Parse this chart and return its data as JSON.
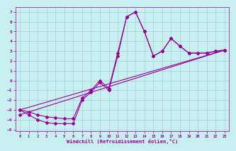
{
  "bg_color": "#c8f0f0",
  "line_color": "#990099",
  "marker": "D",
  "markersize": 2.0,
  "linewidth": 0.8,
  "xlim": [
    -0.5,
    23.5
  ],
  "ylim": [
    -5.2,
    7.5
  ],
  "xticks": [
    0,
    1,
    2,
    3,
    4,
    5,
    6,
    7,
    8,
    9,
    10,
    11,
    12,
    13,
    14,
    15,
    16,
    17,
    18,
    19,
    20,
    21,
    22,
    23
  ],
  "yticks": [
    -5,
    -4,
    -3,
    -2,
    -1,
    0,
    1,
    2,
    3,
    4,
    5,
    6,
    7
  ],
  "xlabel": "Windchill (Refroidissement éolien,°C)",
  "grid_color": "#99cccc",
  "grid_linewidth": 0.4,
  "series1_x": [
    0,
    1,
    2,
    3,
    4,
    5,
    6,
    7,
    8,
    9,
    10,
    11,
    12,
    13,
    14,
    15,
    16,
    17,
    18,
    19,
    20,
    21,
    22,
    23
  ],
  "series1_y": [
    -3.0,
    -3.5,
    -4.0,
    -4.3,
    -4.4,
    -4.4,
    -4.4,
    -2.0,
    -1.2,
    -0.2,
    -1.0,
    2.5,
    6.5,
    7.0,
    5.0,
    2.5,
    3.0,
    4.3,
    3.5,
    2.8,
    2.8,
    2.8,
    3.0,
    3.1
  ],
  "series2_x": [
    0,
    1,
    2,
    3,
    4,
    5,
    6,
    7,
    8,
    9,
    10,
    11,
    12,
    13,
    14,
    15,
    16,
    17,
    18,
    19,
    20,
    21,
    22,
    23
  ],
  "series2_y": [
    -3.0,
    -3.2,
    -3.5,
    -3.7,
    -3.8,
    -3.9,
    -3.9,
    -1.8,
    -1.0,
    0.0,
    -0.8,
    2.8,
    6.5,
    7.0,
    5.0,
    2.5,
    3.0,
    4.3,
    3.5,
    2.8,
    2.8,
    2.8,
    3.0,
    3.1
  ],
  "line3_x": [
    0,
    23
  ],
  "line3_y": [
    -3.0,
    3.1
  ],
  "line4_x": [
    0,
    23
  ],
  "line4_y": [
    -3.5,
    3.1
  ]
}
